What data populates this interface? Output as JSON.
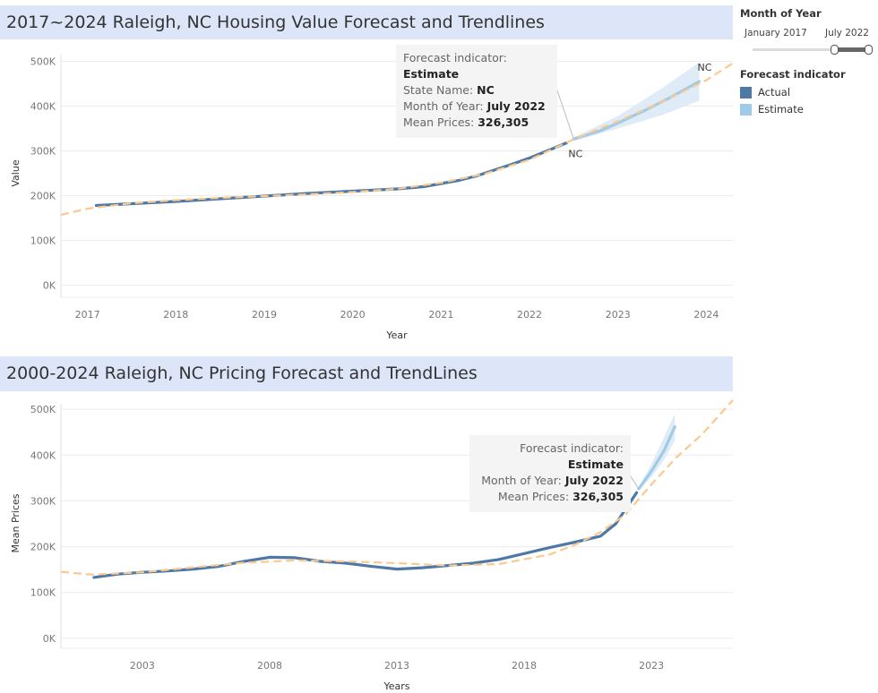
{
  "colors": {
    "actual": "#4e79a7",
    "estimate": "#a0cbe8",
    "trend": "#f9c98f",
    "band": "#ddeaf6",
    "title_bg": "#dce6f8"
  },
  "filter": {
    "title": "Month of Year",
    "start_label": "January 2017",
    "end_label": "July 2022"
  },
  "legend": {
    "title": "Forecast indicator",
    "items": [
      {
        "label": "Actual",
        "color": "#4e79a7"
      },
      {
        "label": "Estimate",
        "color": "#a0cbe8"
      }
    ]
  },
  "chart_data": [
    {
      "type": "line",
      "title": "2017~2024 Raleigh, NC Housing Value Forecast and Trendlines",
      "xlabel": "Year",
      "ylabel": "Value",
      "xlim": [
        2016.7,
        2024.3
      ],
      "ylim": [
        -15000,
        515000
      ],
      "x_ticks": [
        "2017",
        "2018",
        "2019",
        "2020",
        "2021",
        "2022",
        "2023",
        "2024"
      ],
      "y_ticks": [
        "0K",
        "100K",
        "200K",
        "300K",
        "400K",
        "500K"
      ],
      "series": [
        {
          "name": "Actual",
          "x": [
            2017.1,
            2017.5,
            2018.0,
            2018.5,
            2019.0,
            2019.5,
            2020.0,
            2020.5,
            2020.8,
            2021.0,
            2021.2,
            2021.4,
            2021.6,
            2021.8,
            2022.0,
            2022.2,
            2022.42
          ],
          "y": [
            178000,
            182000,
            187000,
            193000,
            199000,
            205000,
            210000,
            215000,
            220000,
            227000,
            234000,
            244000,
            257000,
            270000,
            284000,
            300000,
            318000
          ]
        },
        {
          "name": "Estimate",
          "x": [
            2022.5,
            2022.8,
            2023.0,
            2023.3,
            2023.6,
            2023.92
          ],
          "y": [
            326305,
            345000,
            362000,
            390000,
            420000,
            455000
          ]
        },
        {
          "name": "Estimate range",
          "x": [
            2022.5,
            2023.0,
            2023.5,
            2023.92
          ],
          "upper": [
            330000,
            378000,
            440000,
            498000
          ],
          "lower": [
            322000,
            350000,
            380000,
            412000
          ]
        },
        {
          "name": "Trendline",
          "x": [
            2016.7,
            2017.0,
            2017.5,
            2018.0,
            2018.5,
            2019.0,
            2019.5,
            2020.0,
            2020.5,
            2021.0,
            2021.5,
            2022.0,
            2022.5,
            2023.0,
            2023.5,
            2024.0,
            2024.3
          ],
          "y": [
            157000,
            171000,
            183000,
            190000,
            195000,
            199000,
            203000,
            208000,
            215000,
            229000,
            249000,
            280000,
            326000,
            366000,
            410000,
            458000,
            496000
          ]
        }
      ],
      "annotations": [
        "NC",
        "NC"
      ],
      "tooltip": {
        "indicator_label": "Forecast indicator:",
        "indicator_value": "Estimate",
        "state_label": "State Name:",
        "state_value": "NC",
        "month_label": "Month of Year:",
        "month_value": "July 2022",
        "price_label": "Mean Prices:",
        "price_value": "326,305"
      }
    },
    {
      "type": "line",
      "title": "2000-2024 Raleigh, NC Pricing Forecast and TrendLines",
      "xlabel": "Years",
      "ylabel": "Mean Prices",
      "xlim": [
        1999.8,
        2026.2
      ],
      "ylim": [
        -10000,
        512000
      ],
      "x_ticks": [
        "2003",
        "2008",
        "2013",
        "2018",
        "2023"
      ],
      "y_ticks": [
        "0K",
        "100K",
        "200K",
        "300K",
        "400K",
        "500K"
      ],
      "series": [
        {
          "name": "Actual",
          "x": [
            2001.1,
            2002,
            2003,
            2004,
            2005,
            2006,
            2007,
            2008,
            2009,
            2010,
            2011,
            2012,
            2013,
            2014,
            2015,
            2016,
            2017,
            2018,
            2019,
            2020,
            2021,
            2021.6,
            2022.42
          ],
          "y": [
            133000,
            140000,
            144000,
            147000,
            151000,
            157000,
            168000,
            177000,
            176000,
            168000,
            164000,
            157000,
            151000,
            154000,
            159000,
            164000,
            172000,
            185000,
            198000,
            210000,
            223000,
            250000,
            318000
          ]
        },
        {
          "name": "Estimate",
          "x": [
            2022.5,
            2023.0,
            2023.5,
            2023.92
          ],
          "y": [
            326305,
            365000,
            410000,
            462000
          ]
        },
        {
          "name": "Estimate range",
          "x": [
            2022.5,
            2023.0,
            2023.5,
            2023.92
          ],
          "upper": [
            330000,
            380000,
            440000,
            490000
          ],
          "lower": [
            322000,
            352000,
            390000,
            432000
          ]
        },
        {
          "name": "Trendline",
          "x": [
            1999.8,
            2001,
            2003,
            2005,
            2007,
            2009,
            2011,
            2013,
            2015,
            2017,
            2019,
            2020,
            2021,
            2022,
            2023,
            2024,
            2025,
            2026.2
          ],
          "y": [
            145000,
            139000,
            144000,
            155000,
            165000,
            170000,
            168000,
            164000,
            159000,
            162000,
            183000,
            204000,
            232000,
            271000,
            336000,
            396000,
            446000,
            520000
          ]
        }
      ],
      "tooltip": {
        "indicator_label": "Forecast indicator:",
        "indicator_value": "Estimate",
        "month_label": "Month of Year:",
        "month_value": "July 2022",
        "price_label": "Mean Prices:",
        "price_value": "326,305"
      }
    }
  ]
}
